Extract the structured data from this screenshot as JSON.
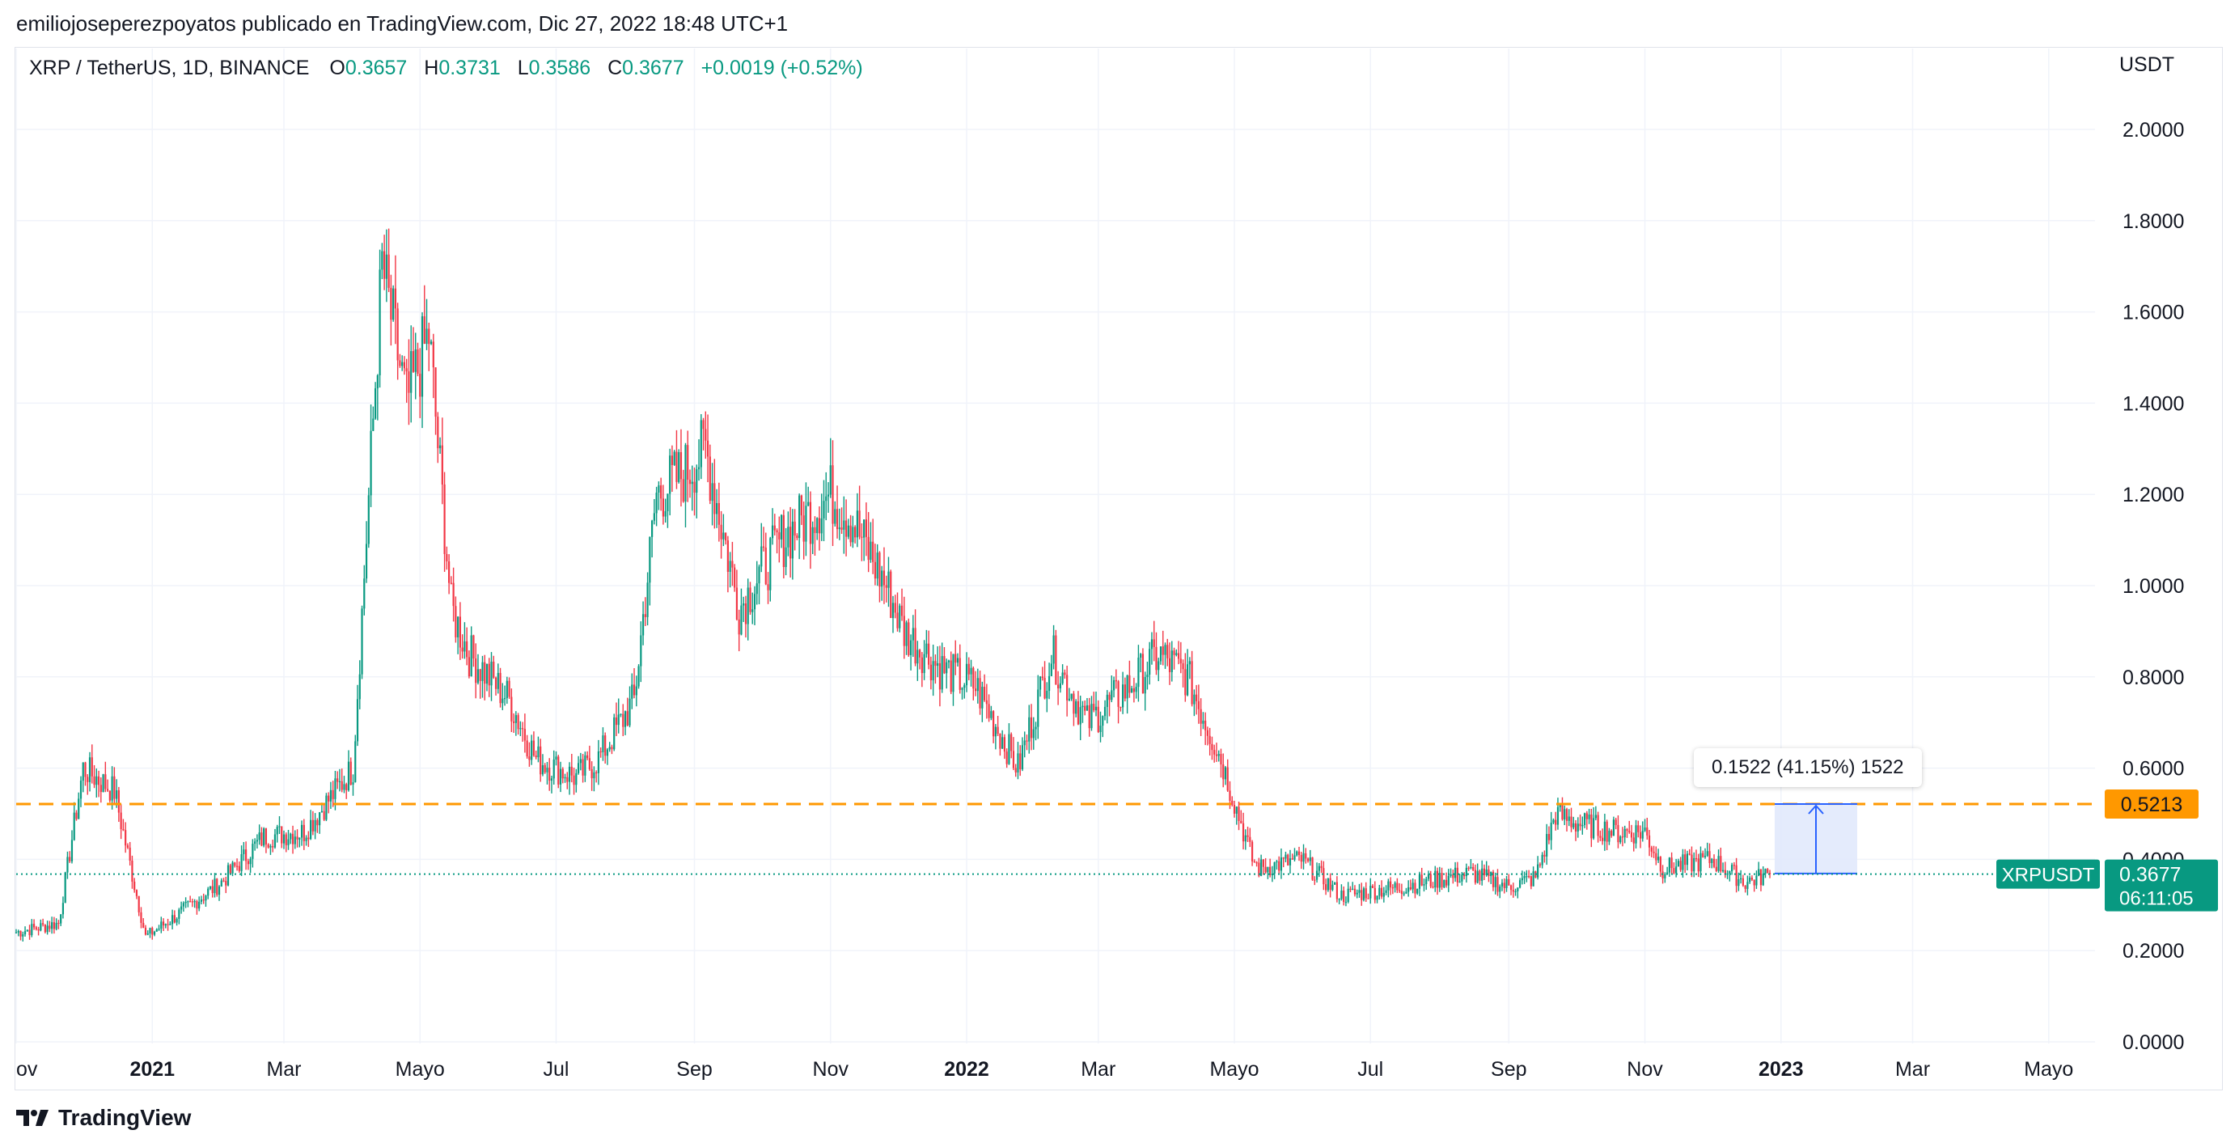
{
  "header": {
    "publisher_line": "emiliojoseperezpoyatos publicado en TradingView.com, Dic 27, 2022 18:48 UTC+1"
  },
  "legend": {
    "symbol": "XRP / TetherUS, 1D, BINANCE",
    "o_label": "O",
    "o_value": "0.3657",
    "h_label": "H",
    "h_value": "0.3731",
    "l_label": "L",
    "l_value": "0.3586",
    "c_label": "C",
    "c_value": "0.3677",
    "change": "+0.0019 (+0.52%)"
  },
  "axis": {
    "currency": "USDT",
    "y_ticks": [
      "2.0000",
      "1.8000",
      "1.6000",
      "1.4000",
      "1.2000",
      "1.0000",
      "0.8000",
      "0.6000",
      "0.4000",
      "0.2000",
      "0.0000"
    ],
    "x_ticks": [
      "ov",
      "2021",
      "Mar",
      "Mayo",
      "Jul",
      "Sep",
      "Nov",
      "2022",
      "Mar",
      "Mayo",
      "Jul",
      "Sep",
      "Nov",
      "2023",
      "Mar",
      "Mayo"
    ],
    "x_tick_bold": [
      false,
      true,
      false,
      false,
      false,
      false,
      false,
      true,
      false,
      false,
      false,
      false,
      false,
      true,
      false,
      false
    ]
  },
  "price_labels": {
    "horizontal_line_value": "0.5213",
    "symbol_tag": "XRPUSDT",
    "last_price": "0.3677",
    "countdown": "06:11:05"
  },
  "measure": {
    "text": "0.1522 (41.15%) 1522",
    "from_price": 0.3691,
    "to_price": 0.5213
  },
  "colors": {
    "up": "#089981",
    "down": "#f23645",
    "hline": "#ff9800",
    "measure_fill": "#dfe7fb",
    "measure_line": "#2962ff",
    "grid": "#f0f3fa"
  },
  "footer": {
    "brand": "TradingView",
    "logo_icon": "tradingview-logo-icon"
  },
  "chart_data": {
    "type": "candlestick",
    "title": "XRP / TetherUS, 1D, BINANCE",
    "ylabel": "USDT",
    "ylim": [
      0,
      2.0
    ],
    "grid": true,
    "x": [
      "2020-11-01",
      "2020-11-20",
      "2020-12-01",
      "2020-12-15",
      "2020-12-29",
      "2021-01-10",
      "2021-02-01",
      "2021-02-20",
      "2021-03-10",
      "2021-04-01",
      "2021-04-14",
      "2021-04-25",
      "2021-05-05",
      "2021-05-15",
      "2021-05-23",
      "2021-06-10",
      "2021-06-22",
      "2021-07-10",
      "2021-07-20",
      "2021-08-05",
      "2021-08-15",
      "2021-08-28",
      "2021-09-06",
      "2021-09-21",
      "2021-10-10",
      "2021-11-01",
      "2021-11-10",
      "2021-11-26",
      "2021-12-04",
      "2021-12-20",
      "2022-01-05",
      "2022-01-24",
      "2022-02-08",
      "2022-02-24",
      "2022-03-15",
      "2022-03-28",
      "2022-04-10",
      "2022-04-25",
      "2022-05-09",
      "2022-05-12",
      "2022-05-31",
      "2022-06-18",
      "2022-07-15",
      "2022-08-15",
      "2022-09-01",
      "2022-09-13",
      "2022-09-22",
      "2022-10-01",
      "2022-10-20",
      "2022-11-01",
      "2022-11-09",
      "2022-11-20",
      "2022-12-01",
      "2022-12-16",
      "2022-12-27"
    ],
    "close": [
      0.24,
      0.26,
      0.6,
      0.55,
      0.23,
      0.27,
      0.35,
      0.45,
      0.46,
      0.6,
      1.7,
      1.4,
      1.55,
      0.95,
      0.85,
      0.75,
      0.62,
      0.58,
      0.62,
      0.75,
      1.2,
      1.25,
      1.3,
      0.95,
      1.1,
      1.2,
      1.15,
      1.0,
      0.9,
      0.82,
      0.78,
      0.6,
      0.85,
      0.7,
      0.78,
      0.85,
      0.8,
      0.62,
      0.4,
      0.38,
      0.4,
      0.32,
      0.34,
      0.37,
      0.34,
      0.36,
      0.5,
      0.48,
      0.46,
      0.46,
      0.38,
      0.39,
      0.4,
      0.35,
      0.3677
    ],
    "annotations": [
      {
        "type": "horizontal_line",
        "value": 0.5213
      },
      {
        "type": "price_range",
        "from": 0.3691,
        "to": 0.5213,
        "label": "0.1522 (41.15%) 1522"
      }
    ]
  }
}
